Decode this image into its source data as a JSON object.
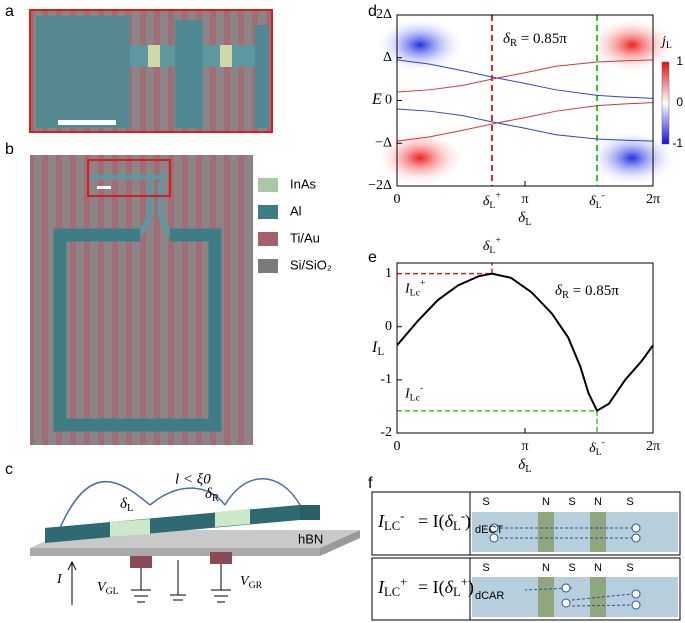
{
  "panel_labels": [
    "a",
    "b",
    "c",
    "d",
    "e",
    "f"
  ],
  "legend": [
    {
      "name": "InAs",
      "color": "#a9c9a4"
    },
    {
      "name": "Al",
      "color": "#3e7d86"
    },
    {
      "name": "Ti/Au",
      "color": "#a6606a"
    },
    {
      "name": "Si/SiO₂",
      "color": "#7a7a7a"
    }
  ],
  "schematic": {
    "length": "l < ξ0",
    "phase_left": {
      "t": "δ",
      "sub": "L"
    },
    "phase_right": {
      "t": "δ",
      "sub": "R"
    },
    "substrate": "hBN",
    "current": "I",
    "gate_left": {
      "t": "V",
      "sub": "GL"
    },
    "gate_right": {
      "t": "V",
      "sub": "GR"
    }
  },
  "processes": [
    {
      "lhs": {
        "t": "I",
        "sub": "LC",
        "sup": "-"
      },
      "rhs": {
        "pre": "= I(",
        "t": "δ",
        "sub": "L",
        "sup": "-",
        "post": ")"
      },
      "letters": [
        "S",
        "N",
        "S",
        "N",
        "S"
      ],
      "name": "dECT"
    },
    {
      "lhs": {
        "t": "I",
        "sub": "LC",
        "sup": "+"
      },
      "rhs": {
        "pre": "= I(",
        "t": "δ",
        "sub": "L",
        "sup": "+",
        "post": ")"
      },
      "letters": [
        "S",
        "N",
        "S",
        "N",
        "S"
      ],
      "name": "dCAR"
    }
  ],
  "chart_data": [
    {
      "type": "line",
      "annotation": {
        "t": "δ",
        "sub": "R",
        "post": " = 0.85π"
      },
      "ylabel": "E",
      "xlabel": {
        "t": "δ",
        "sub": "L"
      },
      "xlim": [
        0,
        6.2832
      ],
      "ylim": [
        -2,
        2
      ],
      "xticks": [
        0,
        {
          "value": 3.1416,
          "label": "π"
        },
        {
          "value": 6.2832,
          "label": "2π"
        }
      ],
      "yticks": [
        {
          "value": 2,
          "label": "2Δ"
        },
        {
          "value": 1,
          "label": "Δ"
        },
        0,
        {
          "value": -1,
          "label": "−Δ"
        },
        {
          "value": -2,
          "label": "−2Δ"
        }
      ],
      "markers": [
        {
          "x": 2.33,
          "color": "#e02020",
          "label": {
            "t": "δ",
            "sub": "L",
            "sup": "+"
          }
        },
        {
          "x": 4.91,
          "color": "#22cc22",
          "label": {
            "t": "δ",
            "sub": "L",
            "sup": "-"
          }
        }
      ],
      "x": [
        0,
        0.8,
        1.6,
        2.33,
        3.14,
        3.9,
        4.91,
        5.6,
        6.283
      ],
      "series": [
        {
          "color": "#3344cc",
          "values": [
            0.95,
            0.85,
            0.7,
            0.55,
            0.4,
            0.25,
            0.12,
            0.08,
            0.05
          ]
        },
        {
          "color": "#dd3333",
          "values": [
            0.2,
            0.25,
            0.35,
            0.5,
            0.65,
            0.8,
            0.9,
            0.93,
            0.95
          ]
        },
        {
          "color": "#dd3333",
          "values": [
            -0.95,
            -0.85,
            -0.7,
            -0.55,
            -0.4,
            -0.25,
            -0.12,
            -0.08,
            -0.05
          ]
        },
        {
          "color": "#3344cc",
          "values": [
            -0.2,
            -0.25,
            -0.35,
            -0.5,
            -0.65,
            -0.8,
            -0.9,
            -0.93,
            -0.95
          ]
        }
      ],
      "colorbar": {
        "label": {
          "t": "j",
          "sub": "L"
        },
        "range": [
          -1,
          1
        ],
        "ticks": [
          1,
          0,
          -1
        ]
      }
    },
    {
      "type": "line",
      "annotation": {
        "t": "δ",
        "sub": "R",
        "post": " = 0.85π"
      },
      "ylabel": {
        "t": "I",
        "sub": "L"
      },
      "xlabel": {
        "t": "δ",
        "sub": "L"
      },
      "xlim": [
        0,
        6.2832
      ],
      "ylim": [
        -2,
        1.2
      ],
      "xticks": [
        0,
        {
          "value": 3.1416,
          "label": "π"
        },
        {
          "value": 6.2832,
          "label": "2π"
        }
      ],
      "yticks": [
        1,
        0,
        -1,
        -2
      ],
      "markers": [
        {
          "x": 2.33,
          "y": 1,
          "color": "#e02020",
          "label": {
            "t": "δ",
            "sub": "L",
            "sup": "+"
          },
          "ylabel": {
            "t": "I",
            "sub": "Lc",
            "sup": "+"
          }
        },
        {
          "x": 4.91,
          "y": -1.58,
          "color": "#44bb22",
          "label": {
            "t": "δ",
            "sub": "L",
            "sup": "-"
          },
          "ylabel": {
            "t": "I",
            "sub": "Lc",
            "sup": "-"
          }
        }
      ],
      "x": [
        0,
        0.5,
        1.0,
        1.5,
        2.0,
        2.33,
        2.8,
        3.3,
        3.8,
        4.2,
        4.5,
        4.7,
        4.91,
        5.2,
        5.6,
        6.0,
        6.283
      ],
      "series": [
        {
          "color": "#000000",
          "values": [
            -0.35,
            0.1,
            0.5,
            0.78,
            0.95,
            1.0,
            0.92,
            0.65,
            0.25,
            -0.2,
            -0.75,
            -1.25,
            -1.58,
            -1.45,
            -1.0,
            -0.65,
            -0.35
          ]
        }
      ]
    }
  ]
}
